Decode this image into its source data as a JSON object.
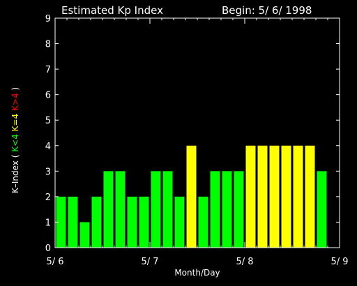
{
  "chart_data": {
    "type": "bar",
    "title": "Estimated Kp Index",
    "begin_label": "Begin: 5/ 6/ 1998",
    "xlabel": "Month/Day",
    "ylabel_prefix": "K–Index (",
    "ylabel_suffix": ")",
    "legend": [
      {
        "label": "K<4",
        "color": "#00ff00"
      },
      {
        "label": "K=4",
        "color": "#ffff00"
      },
      {
        "label": "K>4",
        "color": "#ff0000"
      }
    ],
    "x_ticks": [
      "5/ 6",
      "5/ 7",
      "5/ 8",
      "5/ 9"
    ],
    "y_ticks": [
      "0",
      "1",
      "2",
      "3",
      "4",
      "5",
      "6",
      "7",
      "8",
      "9"
    ],
    "ylim": [
      0,
      9
    ],
    "values": [
      2,
      2,
      1,
      2,
      3,
      3,
      2,
      2,
      3,
      3,
      2,
      4,
      2,
      3,
      3,
      3,
      4,
      4,
      4,
      4,
      4,
      4,
      3
    ],
    "grid": false
  }
}
